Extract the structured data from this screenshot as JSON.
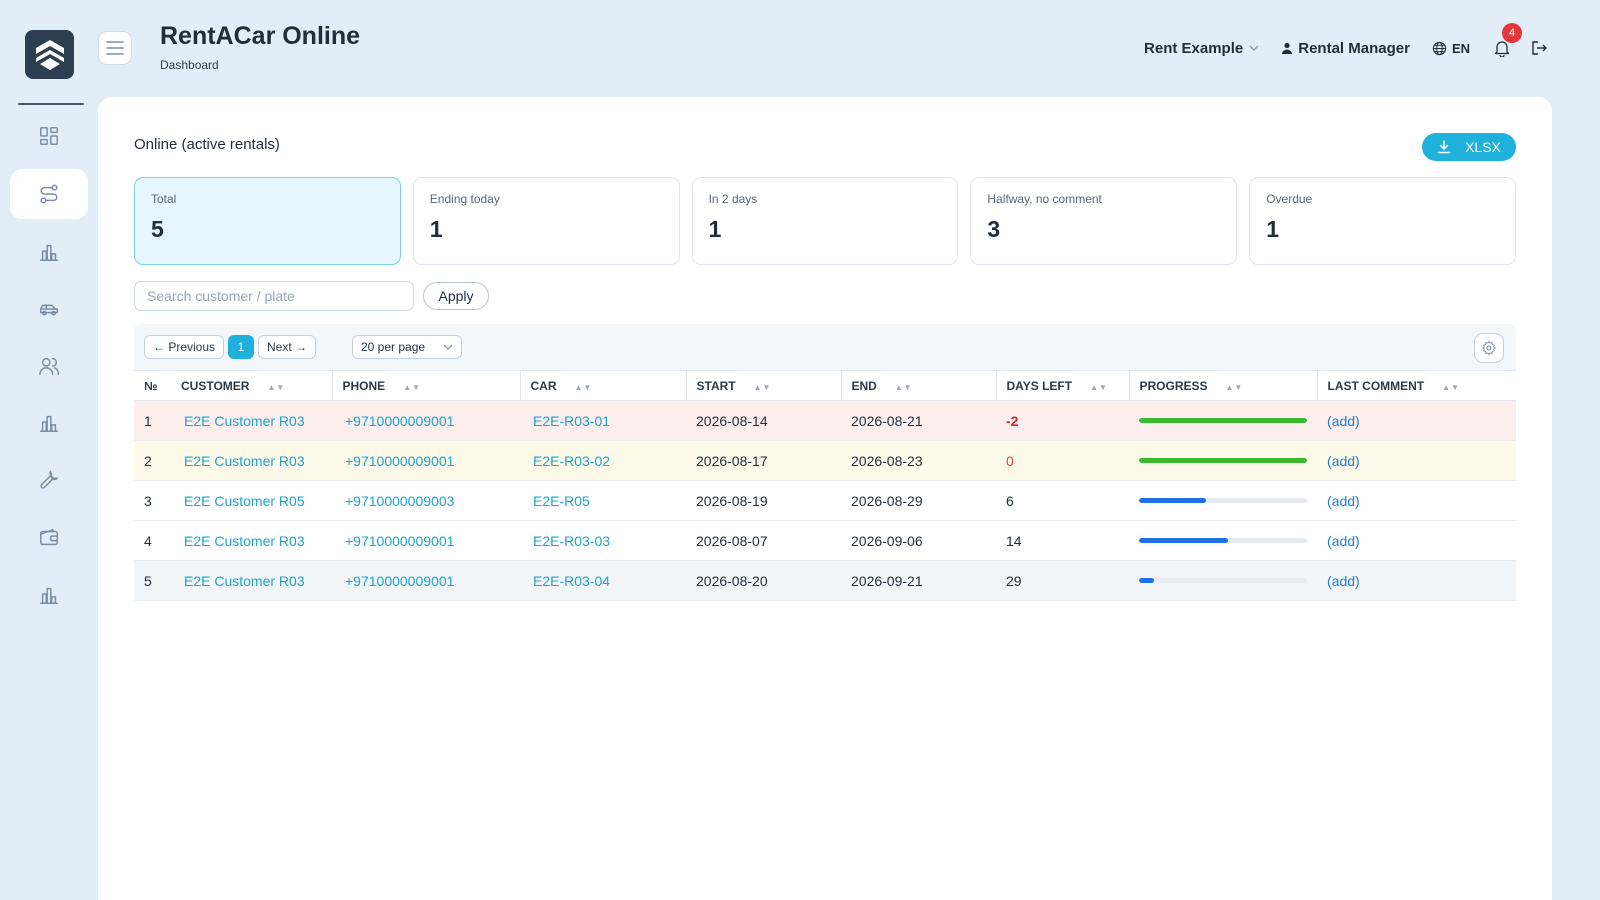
{
  "app": {
    "title": "RentACar Online",
    "subtitle": "Dashboard"
  },
  "sidebar": {
    "items": [
      {
        "name": "dashboard",
        "icon": "grid-icon",
        "active": false
      },
      {
        "name": "online",
        "icon": "route-icon",
        "active": true
      },
      {
        "name": "reports",
        "icon": "bar-chart-icon",
        "active": false
      },
      {
        "name": "cars",
        "icon": "car-icon",
        "active": false
      },
      {
        "name": "customers",
        "icon": "users-icon",
        "active": false
      },
      {
        "name": "analytics",
        "icon": "bar-chart-icon",
        "active": false
      },
      {
        "name": "service",
        "icon": "wrench-icon",
        "active": false
      },
      {
        "name": "finance",
        "icon": "wallet-icon",
        "active": false
      },
      {
        "name": "statistics",
        "icon": "bar-chart-icon",
        "active": false
      }
    ]
  },
  "header": {
    "company": "Rent Example",
    "user": "Rental Manager",
    "language": "EN",
    "notifications": "4"
  },
  "main": {
    "section_title": "Online (active rentals)",
    "export_label": "XLSX",
    "stats": [
      {
        "label": "Total",
        "value": "5"
      },
      {
        "label": "Ending today",
        "value": "1"
      },
      {
        "label": "In 2 days",
        "value": "1"
      },
      {
        "label": "Halfway, no comment",
        "value": "3"
      },
      {
        "label": "Overdue",
        "value": "1"
      }
    ],
    "search": {
      "placeholder": "Search customer / plate",
      "value": ""
    },
    "apply_label": "Apply",
    "pagination": {
      "prev_label": "← Previous",
      "current_page": "1",
      "next_label": "Next →",
      "per_page": "20 per page"
    },
    "table": {
      "columns": [
        "№",
        "CUSTOMER",
        "PHONE",
        "CAR",
        "START",
        "END",
        "DAYS LEFT",
        "PROGRESS",
        "LAST COMMENT"
      ],
      "rows": [
        {
          "num": "1",
          "customer": "E2E Customer R03",
          "phone": "+9710000009001",
          "car": "E2E-R03-01",
          "start": "2026-08-14",
          "end": "2026-08-21",
          "days_left": "-2",
          "progress": 1.0,
          "progress_color": "#3cba2f",
          "comment": "(add)",
          "status": "overdue"
        },
        {
          "num": "2",
          "customer": "E2E Customer R03",
          "phone": "+9710000009001",
          "car": "E2E-R03-02",
          "start": "2026-08-17",
          "end": "2026-08-23",
          "days_left": "0",
          "progress": 1.0,
          "progress_color": "#3cba2f",
          "comment": "(add)",
          "status": "today"
        },
        {
          "num": "3",
          "customer": "E2E Customer R05",
          "phone": "+9710000009003",
          "car": "E2E-R05",
          "start": "2026-08-19",
          "end": "2026-08-29",
          "days_left": "6",
          "progress": 0.4,
          "progress_color": "#1f6fe5",
          "comment": "(add)",
          "status": "normal"
        },
        {
          "num": "4",
          "customer": "E2E Customer R03",
          "phone": "+9710000009001",
          "car": "E2E-R03-03",
          "start": "2026-08-07",
          "end": "2026-09-06",
          "days_left": "14",
          "progress": 0.53,
          "progress_color": "#1f6fe5",
          "comment": "(add)",
          "status": "normal"
        },
        {
          "num": "5",
          "customer": "E2E Customer R03",
          "phone": "+9710000009001",
          "car": "E2E-R03-04",
          "start": "2026-08-20",
          "end": "2026-09-21",
          "days_left": "29",
          "progress": 0.09,
          "progress_color": "#1f6fe5",
          "comment": "(add)",
          "status": "alt"
        }
      ]
    }
  }
}
